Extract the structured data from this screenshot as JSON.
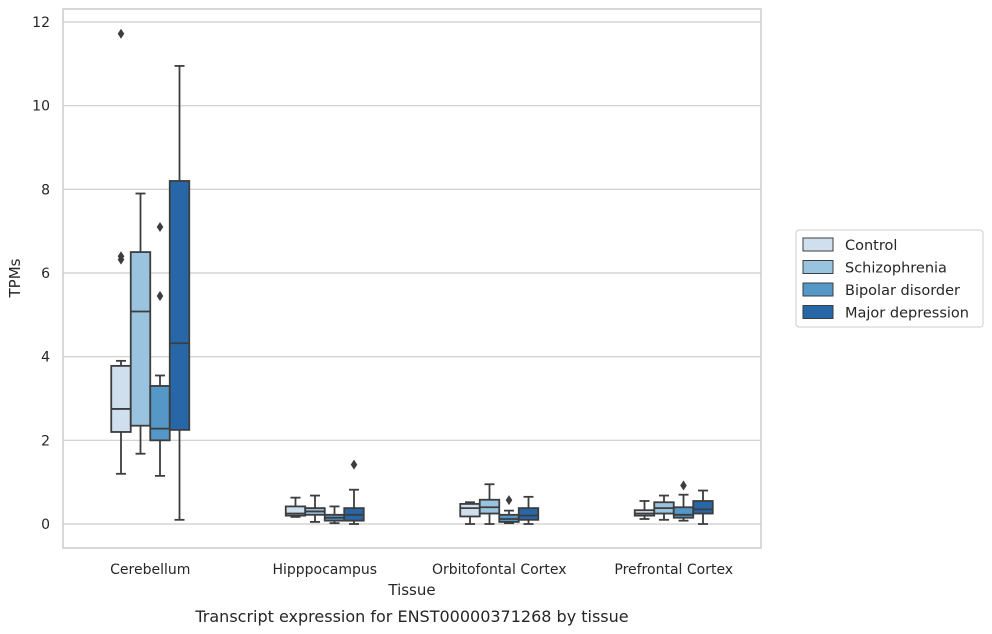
{
  "chart_data": {
    "type": "box",
    "title": "",
    "caption": "Transcript expression for ENST00000371268 by tissue",
    "xlabel": "Tissue",
    "ylabel": "TPMs",
    "ylim": [
      -0.55,
      12.35
    ],
    "yticks": [
      0,
      2,
      4,
      6,
      8,
      10,
      12
    ],
    "grid": "horizontal",
    "legend_position": "right",
    "categories": [
      "Cerebellum",
      "Hipppocampus",
      "Orbitofontal Cortex",
      "Prefrontal Cortex"
    ],
    "series": [
      {
        "name": "Control",
        "color": "#d0dfee",
        "boxes": [
          {
            "whislo": 1.2,
            "q1": 2.2,
            "med": 2.75,
            "q3": 3.78,
            "whishi": 3.9,
            "fliers": []
          },
          {
            "whislo": 0.17,
            "q1": 0.2,
            "med": 0.25,
            "q3": 0.42,
            "whishi": 0.63,
            "fliers": []
          },
          {
            "whislo": 0.0,
            "q1": 0.18,
            "med": 0.38,
            "q3": 0.48,
            "whishi": 0.52,
            "fliers": []
          },
          {
            "whislo": 0.12,
            "q1": 0.2,
            "med": 0.25,
            "q3": 0.33,
            "whishi": 0.55,
            "fliers": []
          }
        ]
      },
      {
        "name": "Schizophrenia",
        "color": "#9ac3df",
        "boxes": [
          {
            "whislo": 1.68,
            "q1": 2.35,
            "med": 5.08,
            "q3": 6.5,
            "whishi": 7.9,
            "fliers": []
          },
          {
            "whislo": 0.05,
            "q1": 0.22,
            "med": 0.3,
            "q3": 0.38,
            "whishi": 0.68,
            "fliers": []
          },
          {
            "whislo": 0.0,
            "q1": 0.25,
            "med": 0.4,
            "q3": 0.58,
            "whishi": 0.95,
            "fliers": []
          },
          {
            "whislo": 0.1,
            "q1": 0.25,
            "med": 0.38,
            "q3": 0.52,
            "whishi": 0.68,
            "fliers": []
          }
        ]
      },
      {
        "name": "Bipolar disorder",
        "color": "#5597c6",
        "boxes": [
          {
            "whislo": 1.15,
            "q1": 2.0,
            "med": 2.28,
            "q3": 3.3,
            "whishi": 3.55,
            "fliers": [
              5.45,
              7.1
            ]
          },
          {
            "whislo": 0.02,
            "q1": 0.08,
            "med": 0.15,
            "q3": 0.22,
            "whishi": 0.42,
            "fliers": []
          },
          {
            "whislo": 0.02,
            "q1": 0.05,
            "med": 0.12,
            "q3": 0.22,
            "whishi": 0.32,
            "fliers": [
              0.57
            ]
          },
          {
            "whislo": 0.08,
            "q1": 0.15,
            "med": 0.22,
            "q3": 0.4,
            "whishi": 0.7,
            "fliers": [
              0.92
            ]
          }
        ]
      },
      {
        "name": "Major depression",
        "color": "#2767a8",
        "boxes": [
          {
            "whislo": 0.1,
            "q1": 2.25,
            "med": 4.32,
            "q3": 8.2,
            "whishi": 10.95,
            "fliers": []
          },
          {
            "whislo": 0.0,
            "q1": 0.08,
            "med": 0.22,
            "q3": 0.38,
            "whishi": 0.82,
            "fliers": [
              1.42
            ]
          },
          {
            "whislo": 0.0,
            "q1": 0.1,
            "med": 0.2,
            "q3": 0.38,
            "whishi": 0.65,
            "fliers": []
          },
          {
            "whislo": 0.0,
            "q1": 0.25,
            "med": 0.35,
            "q3": 0.55,
            "whishi": 0.8,
            "fliers": []
          }
        ]
      }
    ],
    "extra_fliers": [
      {
        "category": "Cerebellum",
        "series": "Control",
        "values": [
          6.32,
          6.4,
          11.72
        ]
      }
    ]
  }
}
